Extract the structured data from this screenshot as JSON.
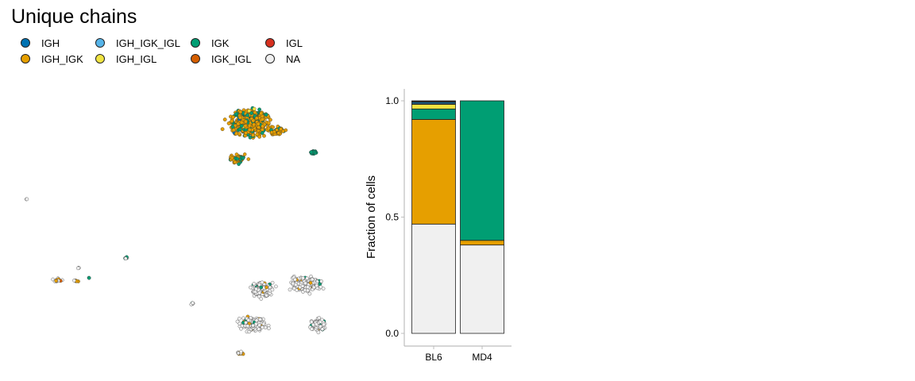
{
  "chart_data": [
    {
      "type": "scatter",
      "title": "Unique chains",
      "legend": {
        "placement": "top-left",
        "entries": [
          {
            "label": "IGH",
            "color": "#0072B2"
          },
          {
            "label": "IGH_IGK",
            "color": "#E69F00"
          },
          {
            "label": "IGH_IGK_IGL",
            "color": "#56B4E9"
          },
          {
            "label": "IGH_IGL",
            "color": "#F0E442"
          },
          {
            "label": "IGK",
            "color": "#009E73"
          },
          {
            "label": "IGK_IGL",
            "color": "#D55E00"
          },
          {
            "label": "IGL",
            "color": "#D7301F"
          },
          {
            "label": "NA",
            "color": "#F0F0F0"
          }
        ]
      },
      "axes": "none",
      "grid": false
    },
    {
      "type": "bar",
      "stacked": true,
      "ylabel": "Fraction of cells",
      "xlabel": "",
      "ylim": [
        0,
        1
      ],
      "yticks": [
        "0.0",
        "0.5",
        "1.0"
      ],
      "categories": [
        "BL6",
        "MD4"
      ],
      "series": [
        {
          "name": "NA",
          "color": "#F0F0F0",
          "values": [
            0.47,
            0.38
          ]
        },
        {
          "name": "IGH_IGK",
          "color": "#E69F00",
          "values": [
            0.45,
            0.02
          ]
        },
        {
          "name": "IGK",
          "color": "#009E73",
          "values": [
            0.045,
            0.6
          ]
        },
        {
          "name": "IGH_IGL",
          "color": "#F0E442",
          "values": [
            0.02,
            0.0
          ]
        },
        {
          "name": "IGH_IGK_IGL",
          "color": "#56B4E9",
          "values": [
            0.004,
            0.0
          ]
        },
        {
          "name": "IGH",
          "color": "#0072B2",
          "values": [
            0.006,
            0.0
          ]
        },
        {
          "name": "IGK_IGL",
          "color": "#D55E00",
          "values": [
            0.003,
            0.0
          ]
        },
        {
          "name": "IGL",
          "color": "#D7301F",
          "values": [
            0.002,
            0.0
          ]
        }
      ]
    }
  ]
}
